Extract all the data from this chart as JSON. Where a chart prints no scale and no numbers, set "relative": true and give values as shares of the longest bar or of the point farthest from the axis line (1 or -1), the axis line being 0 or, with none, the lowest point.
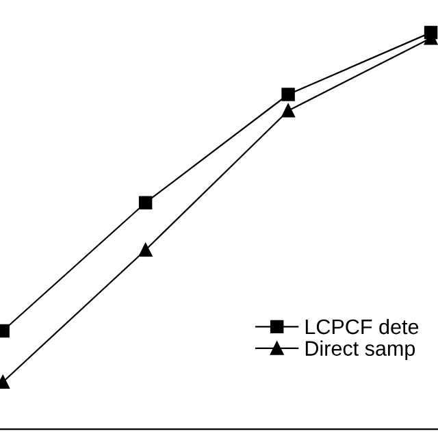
{
  "chart_data": {
    "type": "line",
    "relative": true,
    "categories": [
      null,
      null,
      null,
      null
    ],
    "series": [
      {
        "name": "LCPCF dete",
        "color": "#000000",
        "marker": "square",
        "values": [
          0.248,
          0.571,
          0.844,
          1
        ]
      },
      {
        "name": "Direct samp",
        "color": "#000000",
        "marker": "triangle",
        "values": [
          0.119,
          0.452,
          0.803,
          0.986
        ]
      }
    ],
    "legend": "bottom right",
    "grid": false,
    "line_style": "solid"
  }
}
